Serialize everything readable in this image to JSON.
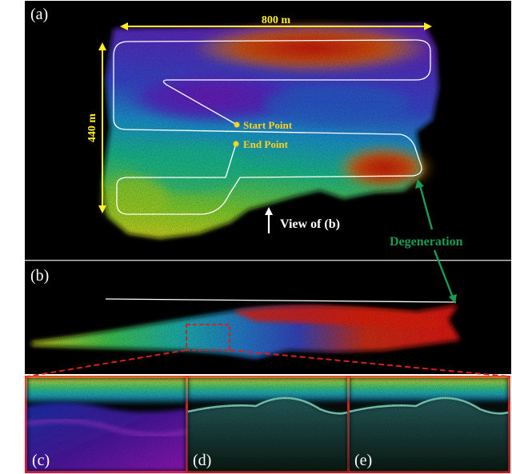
{
  "panels": {
    "a": "(a)",
    "b": "(b)",
    "c": "(c)",
    "d": "(d)",
    "e": "(e)"
  },
  "annotations": {
    "width": "800 m",
    "height": "440 m",
    "start_point": "Start Point",
    "end_point": "End Point",
    "view_of_b": "View of (b)",
    "degeneration": "Degeneration"
  },
  "colors": {
    "dimension": "#ffee22",
    "point_label": "#ffd21e",
    "degeneration": "#1a9c55",
    "zoom_box": "#d81e1e",
    "trajectory": "#ffffff"
  }
}
